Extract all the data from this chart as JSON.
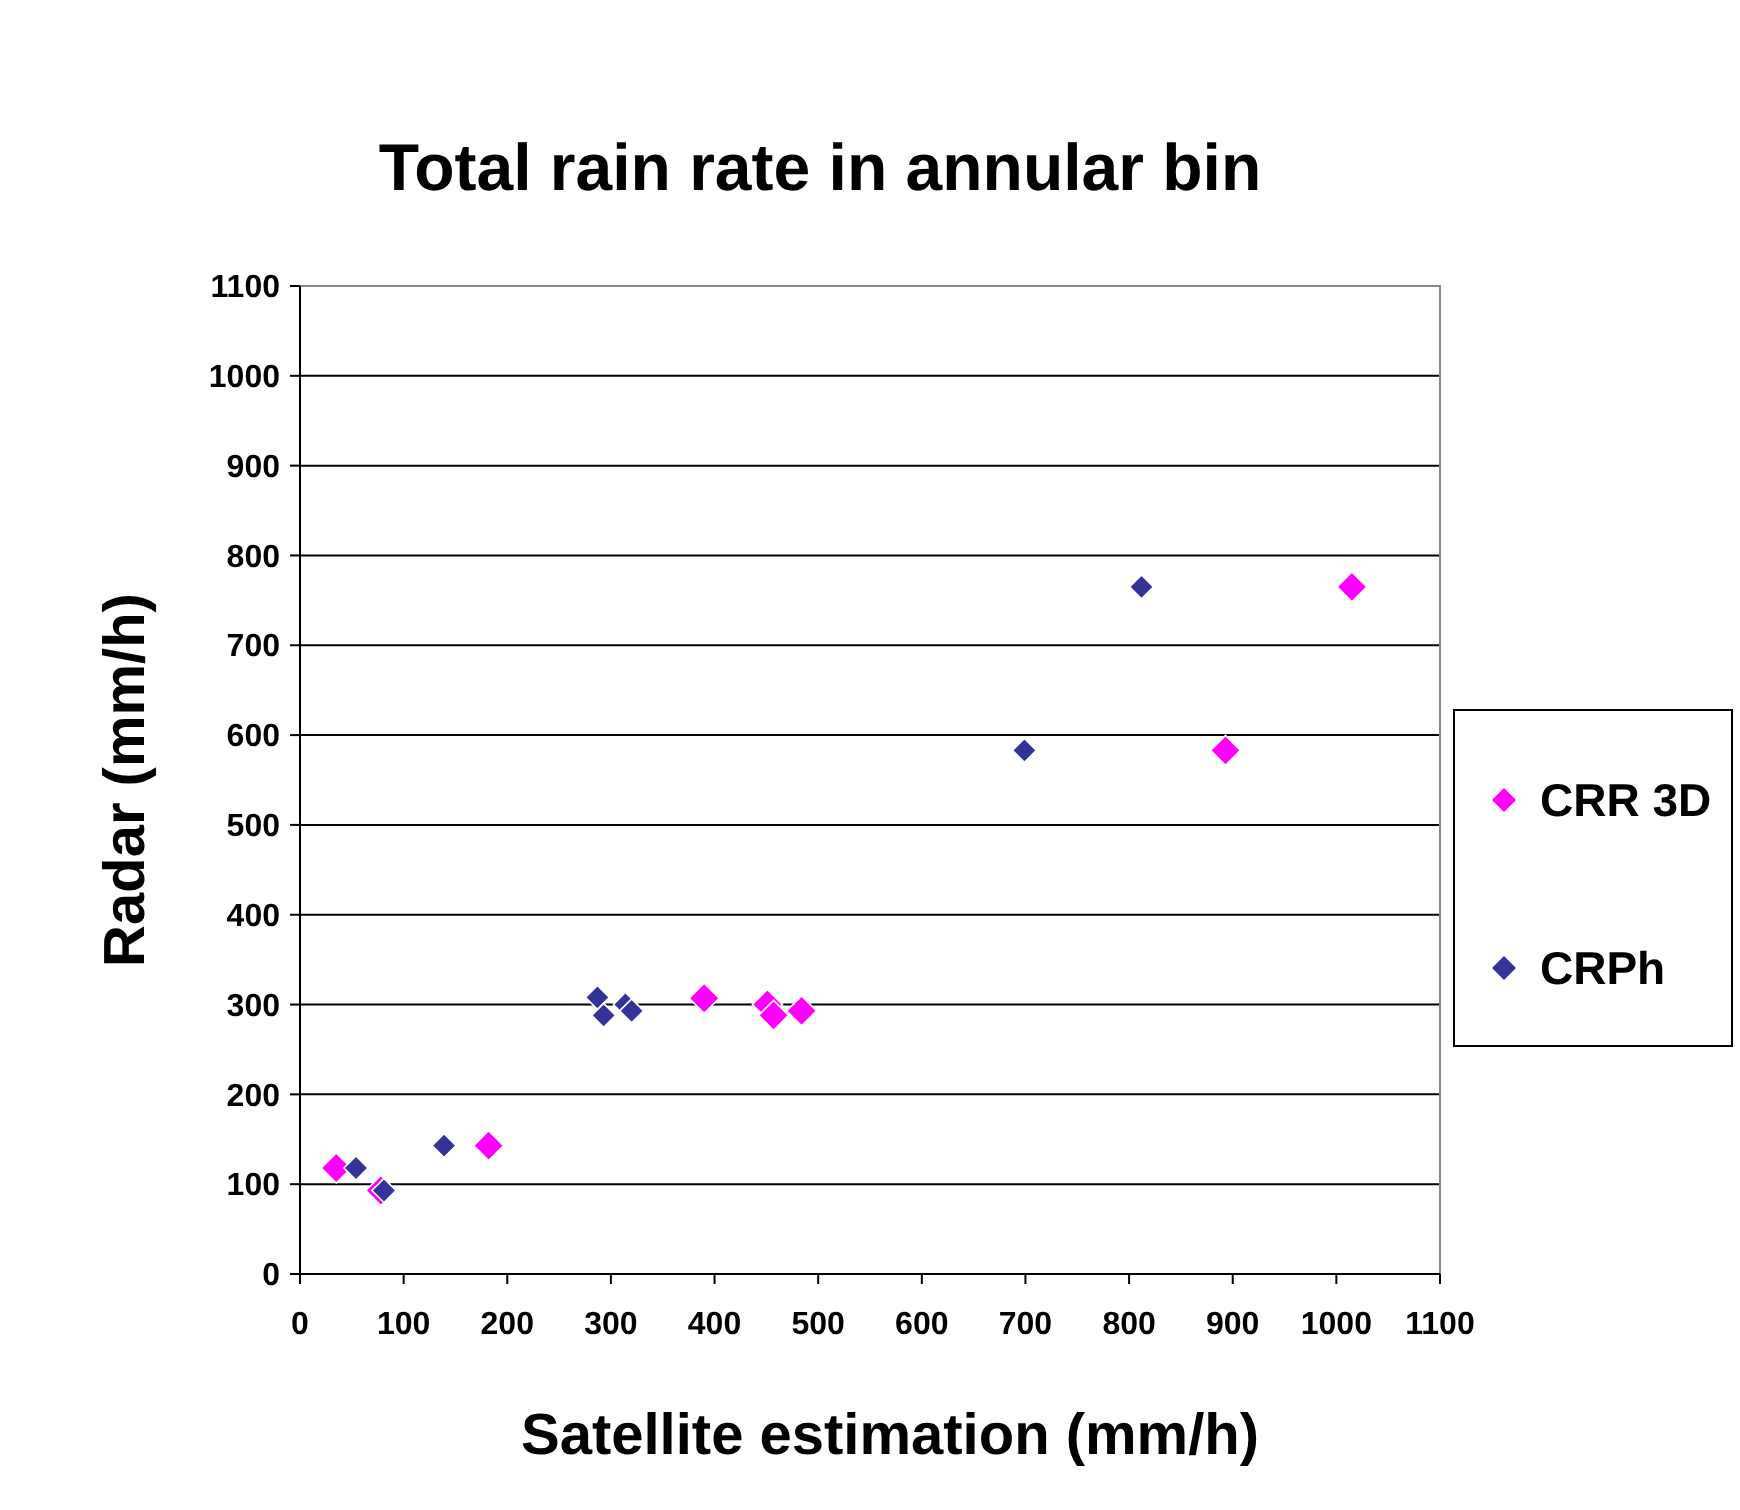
{
  "chart_data": {
    "type": "scatter",
    "title": "Total rain rate in annular bin",
    "xlabel": "Satellite estimation (mm/h)",
    "ylabel": "Radar (mm/h)",
    "xlim": [
      0,
      1100
    ],
    "xticks": [
      0,
      100,
      200,
      300,
      400,
      500,
      600,
      700,
      800,
      900,
      1000,
      1100
    ],
    "ylim": [
      0,
      1100
    ],
    "yticks": [
      0,
      100,
      200,
      300,
      400,
      500,
      600,
      700,
      800,
      900,
      1000,
      1100
    ],
    "grid": "y",
    "legend": "right",
    "marker": "diamond",
    "series": [
      {
        "name": "CRR 3D",
        "color": "#ff00ff",
        "x": [
          35,
          78,
          182,
          390,
          451,
          457,
          484,
          893,
          1015
        ],
        "values": [
          118,
          93,
          143,
          307,
          300,
          288,
          293,
          583,
          765
        ]
      },
      {
        "name": "CRPh",
        "color": "#333399",
        "x": [
          54,
          81,
          139,
          287,
          293,
          314,
          320,
          699,
          812
        ],
        "values": [
          118,
          93,
          143,
          308,
          288,
          300,
          293,
          583,
          765
        ]
      }
    ]
  }
}
